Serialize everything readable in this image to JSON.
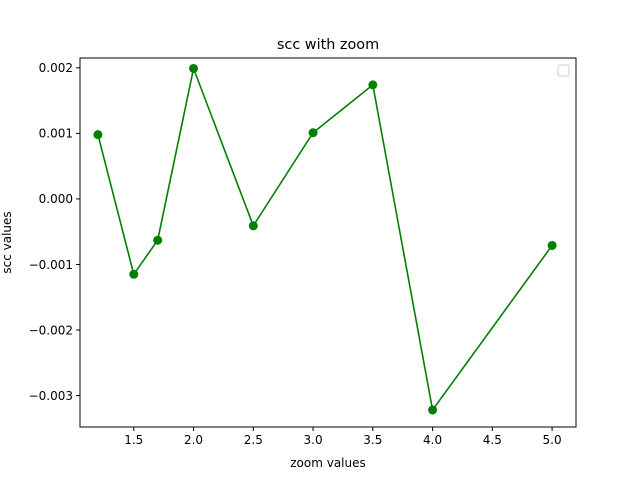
{
  "chart_data": {
    "type": "line",
    "title": "scc with zoom",
    "xlabel": "zoom values",
    "ylabel": "scc values",
    "xlim": [
      1.05,
      5.2
    ],
    "ylim": [
      -0.00348,
      0.00215
    ],
    "xticks": [
      1.5,
      2.0,
      2.5,
      3.0,
      3.5,
      4.0,
      4.5,
      5.0
    ],
    "xtick_labels": [
      "1.5",
      "2.0",
      "2.5",
      "3.0",
      "3.5",
      "4.0",
      "4.5",
      "5.0"
    ],
    "yticks": [
      0.002,
      0.001,
      0.0,
      -0.001,
      -0.002,
      -0.003
    ],
    "ytick_labels": [
      "0.002",
      "0.001",
      "0.000",
      "−0.001",
      "−0.002",
      "−0.003"
    ],
    "grid": false,
    "legend": {
      "position": "top-right",
      "entries": []
    },
    "series": [
      {
        "color": "#008000",
        "marker": "circle",
        "x": [
          1.2,
          1.5,
          1.7,
          2.0,
          2.5,
          3.0,
          3.5,
          4.0,
          5.0
        ],
        "y": [
          0.00098,
          -0.00115,
          -0.00063,
          0.00199,
          -0.00041,
          0.00101,
          0.00174,
          -0.00322,
          -0.00071
        ]
      }
    ]
  }
}
